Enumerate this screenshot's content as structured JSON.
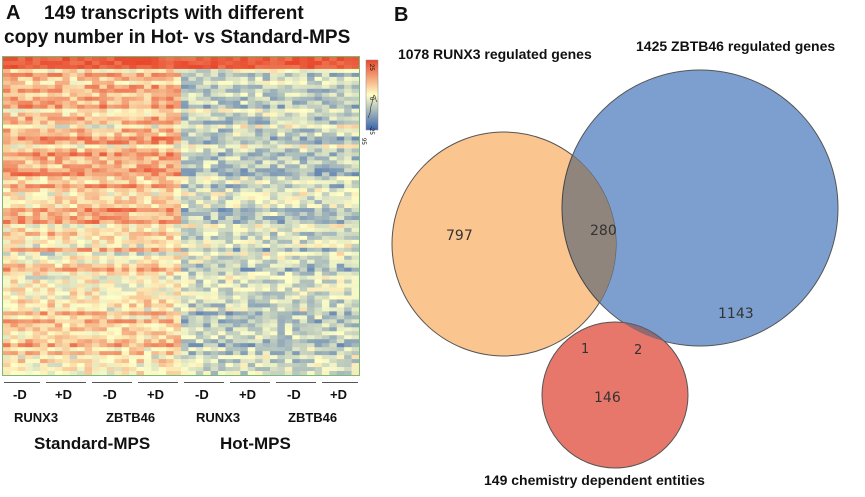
{
  "panel_a": {
    "letter": "A",
    "title_line1": "149 transcripts with different",
    "title_line2": "copy number in Hot- vs Standard-MPS",
    "color_key": {
      "tick_labels": [
        "-25",
        "0",
        "25"
      ],
      "bottom_label": "95",
      "colors": [
        "#3a64ad",
        "#ffffc7",
        "#e8472b"
      ]
    },
    "treatments": [
      "-D",
      "+D",
      "-D",
      "+D",
      "-D",
      "+D",
      "-D",
      "+D"
    ],
    "genes": [
      "RUNX3",
      "ZBTB46",
      "RUNX3",
      "ZBTB46"
    ],
    "groups": [
      "Standard-MPS",
      "Hot-MPS"
    ]
  },
  "panel_b": {
    "letter": "B",
    "label_runx3": "1078 RUNX3 regulated genes",
    "label_zbtb46": "1425 ZBTB46 regulated genes",
    "label_chem": "149  chemistry dependent entities",
    "counts": {
      "runx3_only": "797",
      "runx3_zbtb46": "280",
      "zbtb46_only": "1143",
      "chem_only": "146",
      "runx3_chem": "1",
      "zbtb46_chem": "2"
    },
    "colors": {
      "runx3": "#fbc58f",
      "zbtb46": "#7c9fcf",
      "overlap": "#8f857d",
      "chem": "#e8776b"
    }
  }
}
